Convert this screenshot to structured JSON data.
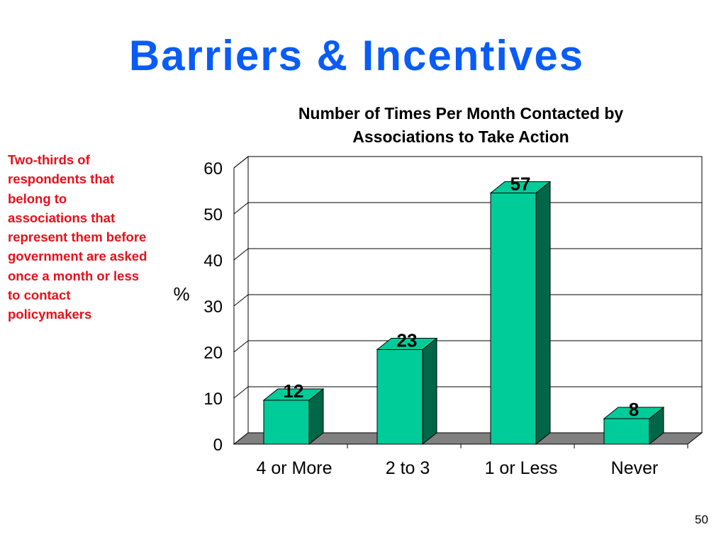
{
  "slide": {
    "title": "Barriers & Incentives",
    "page_number": "50"
  },
  "side_note": "Two-thirds of respondents that belong to associations that represent them before government are asked once a month or less to contact policymakers",
  "colors": {
    "title": "#0a5cf5",
    "note": "#e8101a",
    "bar_front": "#00cc99",
    "bar_side": "#006648",
    "floor": "#808080"
  },
  "chart_data": {
    "type": "bar",
    "title_lines": [
      "Number of Times Per Month Contacted by",
      "Associations to Take Action"
    ],
    "categories": [
      "4 or More",
      "2 to 3",
      "1 or Less",
      "Never"
    ],
    "values": [
      12,
      23,
      57,
      8
    ],
    "data_labels": [
      "12",
      "23",
      "57",
      "8"
    ],
    "ylabel": "%",
    "xlabel": "",
    "ylim": [
      0,
      60
    ],
    "yticks": [
      0,
      10,
      20,
      30,
      40,
      50,
      60
    ],
    "grid": true,
    "legend": "none"
  }
}
